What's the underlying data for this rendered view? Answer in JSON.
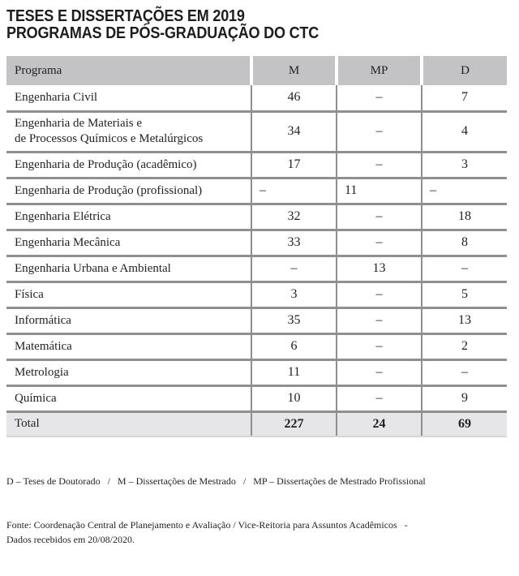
{
  "title_line1": "TESES E DISSERTAÇÕES EM 2019",
  "title_line2": "PROGRAMAS DE PÓS-GRADUAÇÃO DO CTC",
  "table": {
    "headers": {
      "programa": "Programa",
      "m": "M",
      "mp": "MP",
      "d": "D"
    },
    "rows": [
      {
        "programa": "Engenharia Civil",
        "m": "46",
        "mp": "–",
        "d": "7"
      },
      {
        "programa": "Engenharia de Materiais e\nde Processos Químicos e Metalúrgicos",
        "m": "34",
        "mp": "–",
        "d": "4",
        "two_line": true
      },
      {
        "programa": "Engenharia de Produção (acadêmico)",
        "m": "17",
        "mp": "–",
        "d": "3"
      },
      {
        "programa": "Engenharia de Produção (profissional)",
        "m": "–",
        "mp": "11",
        "d": "–",
        "values_align": "left"
      },
      {
        "programa": "Engenharia Elétrica",
        "m": "32",
        "mp": "–",
        "d": "18"
      },
      {
        "programa": "Engenharia Mecânica",
        "m": "33",
        "mp": "–",
        "d": "8"
      },
      {
        "programa": "Engenharia Urbana e Ambiental",
        "m": "–",
        "mp": "13",
        "d": "–"
      },
      {
        "programa": "Física",
        "m": "3",
        "mp": "–",
        "d": "5"
      },
      {
        "programa": "Informática",
        "m": "35",
        "mp": "–",
        "d": "13"
      },
      {
        "programa": "Matemática",
        "m": "6",
        "mp": "–",
        "d": "2"
      },
      {
        "programa": "Metrologia",
        "m": "11",
        "mp": "–",
        "d": "–"
      },
      {
        "programa": "Química",
        "m": "10",
        "mp": "–",
        "d": "9"
      }
    ],
    "total_row": {
      "programa": "Total",
      "m": "227",
      "mp": "24",
      "d": "69"
    }
  },
  "footer": {
    "legend": "D – Teses de Doutorado   /   M – Dissertações de Mestrado   /   MP – Dissertações de Mestrado Profissional",
    "fonte": "Fonte: Coordenação Central de Planejamento e Avaliação / Vice-Reitoria para Assuntos Acadêmicos   -\nDados recebidos em 20/08/2020."
  },
  "colors": {
    "header_bg": "#c3c2c4",
    "total_bg": "#e6e5e7",
    "border": "#8f8f8f",
    "text": "#231f20"
  }
}
